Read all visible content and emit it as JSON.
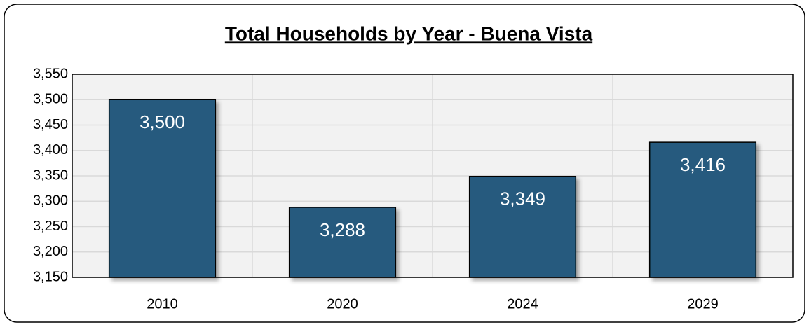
{
  "chart_data": {
    "type": "bar",
    "title": "Total Households by Year - Buena Vista",
    "categories": [
      "2010",
      "2020",
      "2024",
      "2029"
    ],
    "values": [
      3500,
      3288,
      3349,
      3416
    ],
    "value_labels": [
      "3,500",
      "3,288",
      "3,349",
      "3,416"
    ],
    "color": "#275a7e",
    "ylim": [
      3150,
      3550
    ],
    "yticks": [
      {
        "value": 3150,
        "label": "3,150"
      },
      {
        "value": 3200,
        "label": "3,200"
      },
      {
        "value": 3250,
        "label": "3,250"
      },
      {
        "value": 3300,
        "label": "3,300"
      },
      {
        "value": 3350,
        "label": "3,350"
      },
      {
        "value": 3400,
        "label": "3,400"
      },
      {
        "value": 3450,
        "label": "3,450"
      },
      {
        "value": 3500,
        "label": "3,500"
      },
      {
        "value": 3550,
        "label": "3,550"
      }
    ],
    "grid": true
  }
}
